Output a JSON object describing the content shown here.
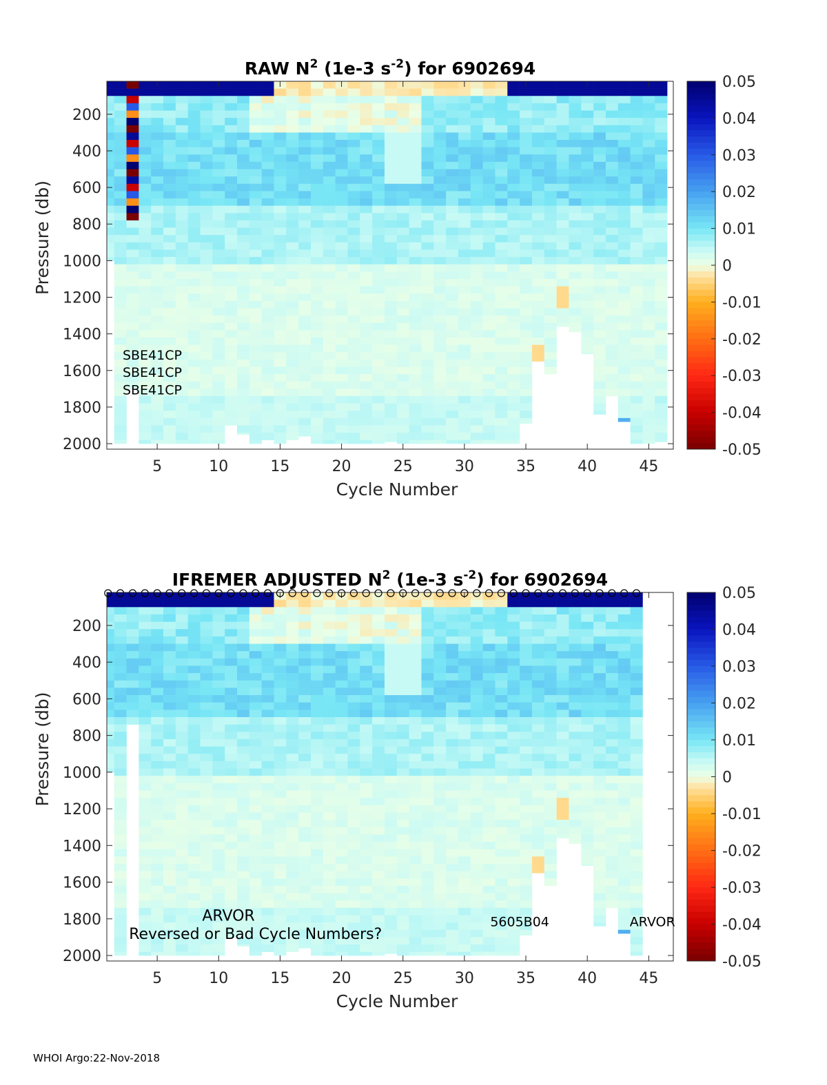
{
  "footer": "WHOI Argo:22-Nov-2018",
  "chart_data": [
    {
      "type": "heatmap",
      "title": "RAW N² (1e-3 s⁻²) for 6902694",
      "title_parts": {
        "pre": "RAW N",
        "sup1": "2",
        "mid": " (1e-3 s",
        "sup2": "-2",
        "post": ") for 6902694"
      },
      "xlabel": "Cycle Number",
      "ylabel": "Pressure (db)",
      "xlim": [
        0.9,
        47
      ],
      "ylim": [
        2030,
        20
      ],
      "xticks": [
        5,
        10,
        15,
        20,
        25,
        30,
        35,
        40,
        45
      ],
      "yticks": [
        200,
        400,
        600,
        800,
        1000,
        1200,
        1400,
        1600,
        1800,
        2000
      ],
      "colorbar": {
        "range": [
          -0.05,
          0.05
        ],
        "ticks": [
          "0.05",
          "0.04",
          "0.03",
          "0.02",
          "0.01",
          "0",
          "-0.01",
          "-0.02",
          "-0.03",
          "-0.04",
          "-0.05"
        ]
      },
      "annotations": [
        {
          "text": "SBE41CP",
          "x": 4.6,
          "y": 1540
        },
        {
          "text": "SBE41CP",
          "x": 4.6,
          "y": 1635
        },
        {
          "text": "SBE41CP",
          "x": 4.6,
          "y": 1730
        }
      ],
      "max_depth_by_cycle": [
        1000,
        2000,
        1700,
        2000,
        2000,
        2000,
        2000,
        2000,
        2000,
        2000,
        1900,
        1950,
        2000,
        1980,
        2000,
        1980,
        1960,
        2000,
        2000,
        2000,
        2000,
        2000,
        2000,
        1990,
        2000,
        2000,
        2000,
        2000,
        2000,
        2000,
        2000,
        2000,
        2000,
        2000,
        1890,
        1550,
        1620,
        1360,
        1390,
        1510,
        1840,
        1740,
        1880,
        2000,
        2000,
        1990
      ],
      "cycle1_depth": 1000,
      "surface_markers": false
    },
    {
      "type": "heatmap",
      "title": "IFREMER ADJUSTED N² (1e-3 s⁻²) for 6902694",
      "title_parts": {
        "pre": "IFREMER  ADJUSTED N",
        "sup1": "2",
        "mid": " (1e-3 s",
        "sup2": "-2",
        "post": ") for 6902694"
      },
      "xlabel": "Cycle Number",
      "ylabel": "Pressure (db)",
      "xlim": [
        0.9,
        47
      ],
      "ylim": [
        2030,
        20
      ],
      "xticks": [
        5,
        10,
        15,
        20,
        25,
        30,
        35,
        40,
        45
      ],
      "yticks": [
        200,
        400,
        600,
        800,
        1000,
        1200,
        1400,
        1600,
        1800,
        2000
      ],
      "colorbar": {
        "range": [
          -0.05,
          0.05
        ],
        "ticks": [
          "0.05",
          "0.04",
          "0.03",
          "0.02",
          "0.01",
          "0",
          "-0.01",
          "-0.02",
          "-0.03",
          "-0.04",
          "-0.05"
        ]
      },
      "annotations": [
        {
          "text": "ARVOR",
          "x": 10.8,
          "y": 1810,
          "size": "lg"
        },
        {
          "text": "Reversed or Bad Cycle Numbers?",
          "x": 13.0,
          "y": 1910,
          "size": "lg"
        },
        {
          "text": "5605B04",
          "x": 34.5,
          "y": 1840
        },
        {
          "text": "ARVOR",
          "x": 45.3,
          "y": 1840
        }
      ],
      "max_depth_by_cycle": [
        1000,
        2000,
        740,
        2000,
        2000,
        2000,
        2000,
        2000,
        2000,
        2000,
        1900,
        1950,
        2000,
        1980,
        2000,
        1980,
        1960,
        2000,
        2000,
        2000,
        2000,
        2000,
        2000,
        1990,
        2000,
        2000,
        2000,
        2000,
        2000,
        2000,
        2000,
        2000,
        2000,
        2000,
        1890,
        1550,
        1620,
        1360,
        1390,
        1510,
        1840,
        1740,
        1880,
        2000,
        0,
        0
      ],
      "surface_markers": true,
      "marker_cycles": [
        1,
        2,
        3,
        4,
        5,
        6,
        7,
        8,
        9,
        10,
        11,
        12,
        13,
        14,
        15,
        16,
        17,
        18,
        19,
        20,
        21,
        22,
        23,
        24,
        25,
        26,
        27,
        28,
        29,
        30,
        31,
        32,
        33,
        34,
        35,
        36,
        37,
        38,
        39,
        40,
        41,
        42,
        43,
        44
      ]
    }
  ]
}
